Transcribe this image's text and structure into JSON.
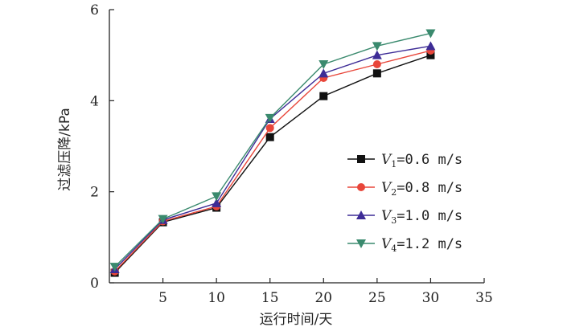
{
  "chart_data": {
    "type": "line",
    "xlabel": "运行时间/天",
    "ylabel": "过滤压降/kPa",
    "xlim": [
      0,
      35
    ],
    "ylim": [
      0,
      6
    ],
    "xticks": [
      5,
      10,
      15,
      20,
      25,
      30,
      35
    ],
    "xtick_labels": [
      "5",
      "10",
      "15",
      "20",
      "25",
      "30",
      "35"
    ],
    "yticks": [
      0,
      2,
      4,
      6
    ],
    "ytick_labels": [
      "0",
      "2",
      "4",
      "6"
    ],
    "grid": false,
    "legend_position": "right-middle",
    "x": [
      0.5,
      5,
      10,
      15,
      20,
      25,
      30
    ],
    "series": [
      {
        "name": "V1=0.6 m/s",
        "legend": {
          "var": "V",
          "sub": "1",
          "rest": "=0.6 m/s"
        },
        "color": "#111111",
        "marker": "square",
        "values": [
          0.22,
          1.33,
          1.65,
          3.2,
          4.1,
          4.6,
          5.0
        ]
      },
      {
        "name": "V2=0.8 m/s",
        "legend": {
          "var": "V",
          "sub": "2",
          "rest": "=0.8 m/s"
        },
        "color": "#e8463a",
        "marker": "circle",
        "values": [
          0.25,
          1.35,
          1.68,
          3.4,
          4.5,
          4.8,
          5.1
        ]
      },
      {
        "name": "V3=1.0 m/s",
        "legend": {
          "var": "V",
          "sub": "3",
          "rest": "=1.0 m/s"
        },
        "color": "#3d2c96",
        "marker": "triangle-up",
        "values": [
          0.3,
          1.38,
          1.75,
          3.6,
          4.6,
          5.0,
          5.2
        ]
      },
      {
        "name": "V4=1.2 m/s",
        "legend": {
          "var": "V",
          "sub": "4",
          "rest": "=1.2 m/s"
        },
        "color": "#3a8a6e",
        "marker": "triangle-down",
        "values": [
          0.35,
          1.4,
          1.9,
          3.62,
          4.8,
          5.2,
          5.48
        ]
      }
    ]
  }
}
